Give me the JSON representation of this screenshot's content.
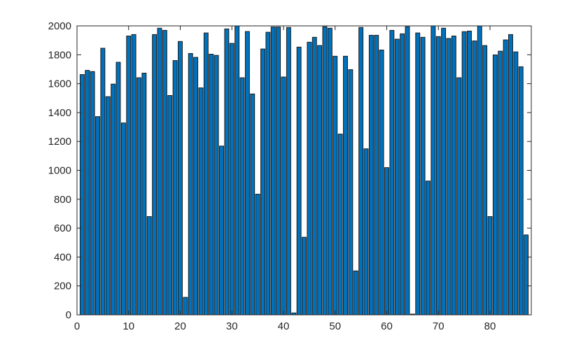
{
  "chart_data": {
    "type": "bar",
    "title": "",
    "xlabel": "",
    "ylabel": "",
    "xlim": [
      0,
      88
    ],
    "ylim": [
      0,
      2000
    ],
    "grid": false,
    "bar_color": "#0072BD",
    "edge_color": "#1a1a1a",
    "x": [
      1,
      2,
      3,
      4,
      5,
      6,
      7,
      8,
      9,
      10,
      11,
      12,
      13,
      14,
      15,
      16,
      17,
      18,
      19,
      20,
      21,
      22,
      23,
      24,
      25,
      26,
      27,
      28,
      29,
      30,
      31,
      32,
      33,
      34,
      35,
      36,
      37,
      38,
      39,
      40,
      41,
      42,
      43,
      44,
      45,
      46,
      47,
      48,
      49,
      50,
      51,
      52,
      53,
      54,
      55,
      56,
      57,
      58,
      59,
      60,
      61,
      62,
      63,
      64,
      65,
      66,
      67,
      68,
      69,
      70,
      71,
      72,
      73,
      74,
      75,
      76,
      77,
      78,
      79,
      80,
      81,
      82,
      83,
      84,
      85,
      86,
      87
    ],
    "values": [
      1663,
      1692,
      1684,
      1372,
      1845,
      1510,
      1597,
      1748,
      1328,
      1930,
      1940,
      1641,
      1673,
      680,
      1940,
      1984,
      1969,
      1518,
      1760,
      1892,
      121,
      1809,
      1782,
      1571,
      1951,
      1804,
      1796,
      1168,
      1979,
      1879,
      2000,
      1641,
      1961,
      1529,
      835,
      1840,
      1956,
      1992,
      1992,
      1646,
      1989,
      13,
      1853,
      537,
      1887,
      1921,
      1864,
      1994,
      1984,
      1790,
      1251,
      1790,
      1697,
      304,
      1989,
      1149,
      1935,
      1935,
      1833,
      1019,
      1969,
      1908,
      1945,
      1994,
      5,
      1951,
      1921,
      926,
      2000,
      1926,
      1984,
      1913,
      1930,
      1641,
      1960,
      1964,
      1896,
      2000,
      1864,
      680,
      1799,
      1825,
      1903,
      1940,
      1820,
      1717,
      553
    ],
    "xticks": [
      "0",
      "10",
      "20",
      "30",
      "40",
      "50",
      "60",
      "70",
      "80"
    ],
    "yticks": [
      "0",
      "200",
      "400",
      "600",
      "800",
      "1000",
      "1200",
      "1400",
      "1600",
      "1800",
      "2000"
    ]
  }
}
